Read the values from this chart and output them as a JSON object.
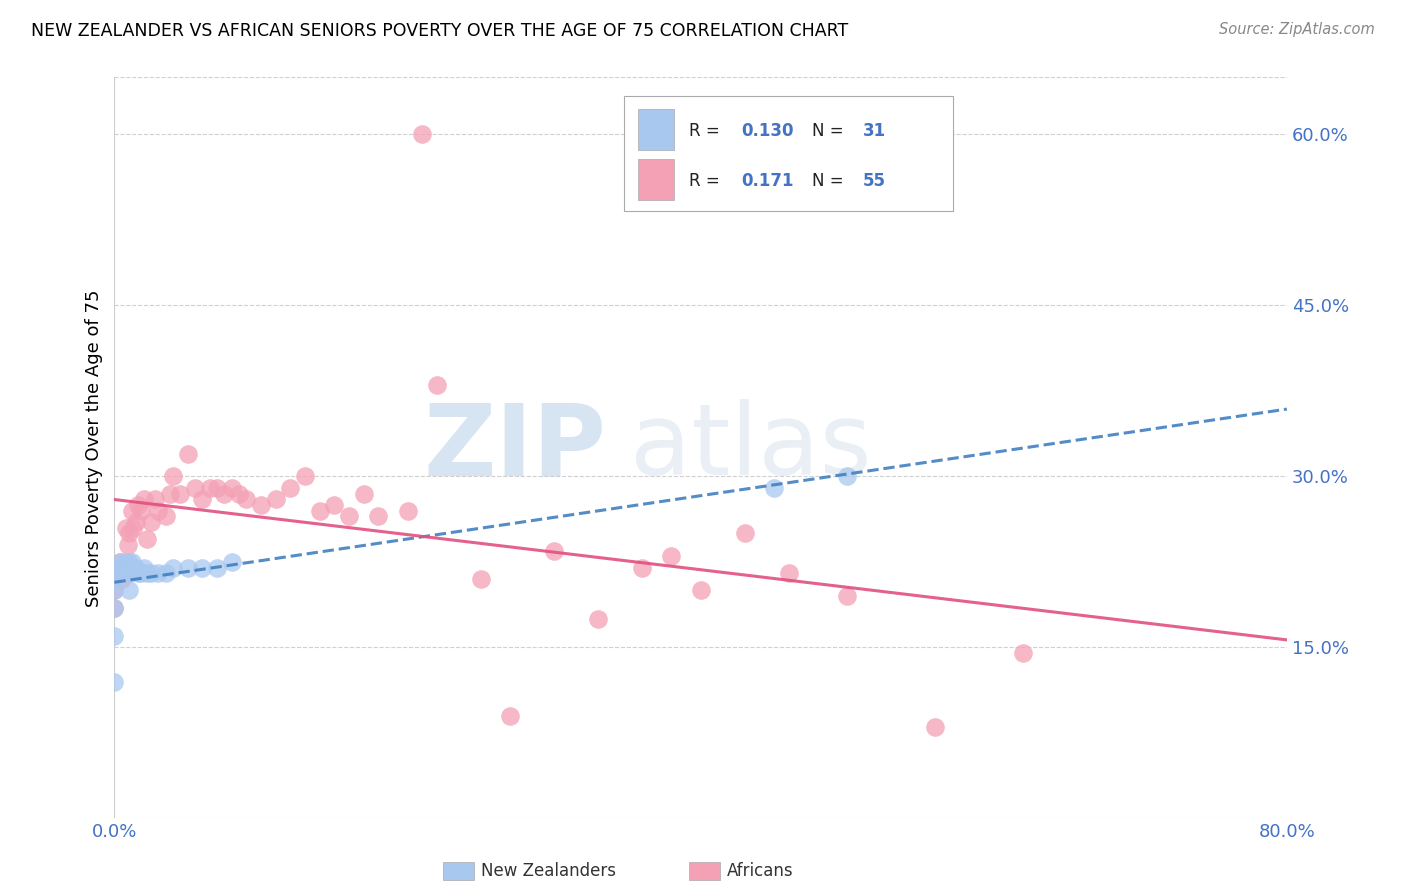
{
  "title": "NEW ZEALANDER VS AFRICAN SENIORS POVERTY OVER THE AGE OF 75 CORRELATION CHART",
  "source": "Source: ZipAtlas.com",
  "ylabel": "Seniors Poverty Over the Age of 75",
  "xlim": [
    0,
    0.8
  ],
  "ylim": [
    0,
    0.65
  ],
  "r_nz": 0.13,
  "n_nz": 31,
  "r_af": 0.171,
  "n_af": 55,
  "legend_label_nz": "New Zealanders",
  "legend_label_af": "Africans",
  "color_nz": "#a8c8f0",
  "color_af": "#f4a0b5",
  "line_color_nz": "#4080c0",
  "line_color_af": "#e05080",
  "watermark_zip": "ZIP",
  "watermark_atlas": "atlas",
  "nz_x": [
    0.0,
    0.0,
    0.0,
    0.0,
    0.0,
    0.0,
    0.004,
    0.005,
    0.005,
    0.008,
    0.009,
    0.01,
    0.01,
    0.01,
    0.012,
    0.013,
    0.015,
    0.016,
    0.018,
    0.02,
    0.022,
    0.025,
    0.03,
    0.035,
    0.04,
    0.05,
    0.06,
    0.07,
    0.08,
    0.45,
    0.5
  ],
  "nz_y": [
    0.2,
    0.22,
    0.21,
    0.185,
    0.16,
    0.12,
    0.225,
    0.22,
    0.215,
    0.225,
    0.22,
    0.225,
    0.215,
    0.2,
    0.225,
    0.22,
    0.22,
    0.215,
    0.215,
    0.22,
    0.215,
    0.215,
    0.215,
    0.215,
    0.22,
    0.22,
    0.22,
    0.22,
    0.225,
    0.29,
    0.3
  ],
  "af_x": [
    0.0,
    0.0,
    0.0,
    0.004,
    0.005,
    0.008,
    0.009,
    0.01,
    0.012,
    0.013,
    0.015,
    0.016,
    0.018,
    0.02,
    0.022,
    0.025,
    0.028,
    0.03,
    0.035,
    0.038,
    0.04,
    0.045,
    0.05,
    0.055,
    0.06,
    0.065,
    0.07,
    0.075,
    0.08,
    0.085,
    0.09,
    0.1,
    0.11,
    0.12,
    0.13,
    0.14,
    0.15,
    0.16,
    0.17,
    0.18,
    0.2,
    0.21,
    0.22,
    0.25,
    0.27,
    0.3,
    0.33,
    0.36,
    0.38,
    0.4,
    0.43,
    0.46,
    0.5,
    0.56,
    0.62
  ],
  "af_y": [
    0.215,
    0.2,
    0.185,
    0.225,
    0.21,
    0.255,
    0.24,
    0.25,
    0.27,
    0.255,
    0.26,
    0.275,
    0.27,
    0.28,
    0.245,
    0.26,
    0.28,
    0.27,
    0.265,
    0.285,
    0.3,
    0.285,
    0.32,
    0.29,
    0.28,
    0.29,
    0.29,
    0.285,
    0.29,
    0.285,
    0.28,
    0.275,
    0.28,
    0.29,
    0.3,
    0.27,
    0.275,
    0.265,
    0.285,
    0.265,
    0.27,
    0.6,
    0.38,
    0.21,
    0.09,
    0.235,
    0.175,
    0.22,
    0.23,
    0.2,
    0.25,
    0.215,
    0.195,
    0.08,
    0.145
  ]
}
